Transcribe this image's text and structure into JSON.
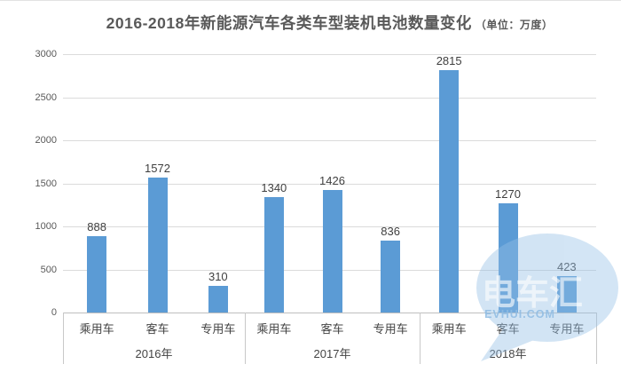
{
  "chart_data": {
    "type": "bar",
    "title": "2016-2018年新能源汽车各类车型装机电池数量变化",
    "unit_label": "（单位：万度）",
    "categories": [
      "乘用车",
      "客车",
      "专用车"
    ],
    "groups": [
      {
        "label": "2016年",
        "values": [
          888,
          1572,
          310
        ]
      },
      {
        "label": "2017年",
        "values": [
          1340,
          1426,
          836
        ]
      },
      {
        "label": "2018年",
        "values": [
          2815,
          1270,
          423
        ]
      }
    ],
    "ylim": [
      0,
      3000
    ],
    "ytick_step": 500,
    "grid": true,
    "legend": false,
    "data_labels": true,
    "bar_color": "#5b9bd5"
  },
  "watermark": {
    "brand": "电车汇",
    "site": "EVHUI.COM",
    "bubble_color": "#96c0e6"
  },
  "colors": {
    "title_text": "#595959",
    "axis_text": "#595959",
    "label_text": "#3f3f3f",
    "gridline": "#dbdbdb",
    "axis_line": "#bfbfbf"
  }
}
